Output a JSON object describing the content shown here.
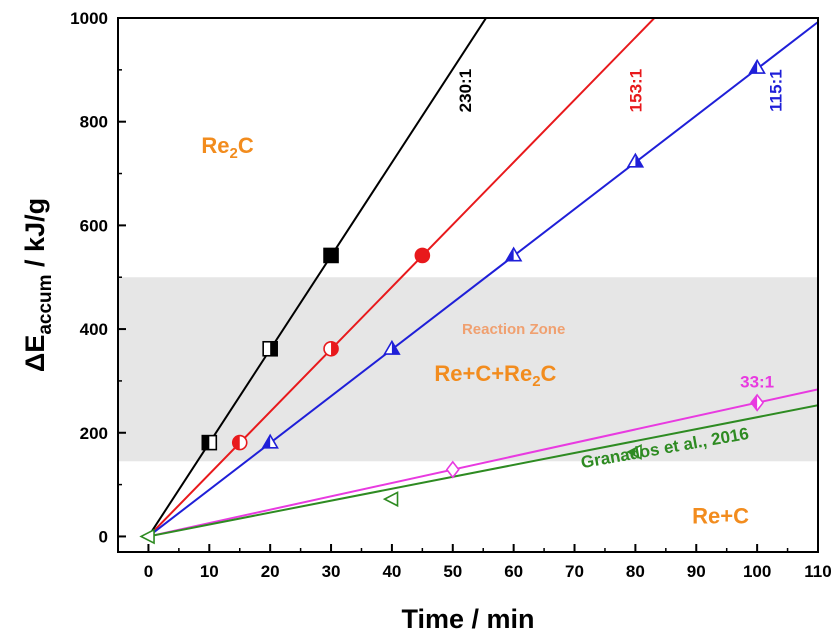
{
  "chart_data": {
    "type": "scatter",
    "xlabel": "Time / min",
    "ylabel": {
      "prefix": "ΔE",
      "sub": "accum",
      "suffix": " / kJ/g"
    },
    "xlim": [
      -5,
      110
    ],
    "ylim": [
      -30,
      1000
    ],
    "xticks": [
      0,
      10,
      20,
      30,
      40,
      50,
      60,
      70,
      80,
      90,
      100,
      110
    ],
    "yticks": [
      0,
      200,
      400,
      600,
      800,
      1000
    ],
    "grid": false,
    "legend": "none",
    "shaded_band": {
      "y": [
        145,
        500
      ],
      "label": "Reaction Zone",
      "color": "#E6E6E6"
    },
    "regions": [
      {
        "parts": [
          {
            "t": "Re"
          },
          {
            "t": "2",
            "sub": true
          },
          {
            "t": "C"
          }
        ],
        "x": 13,
        "y": 740
      },
      {
        "parts": [
          {
            "t": "Re+C+Re"
          },
          {
            "t": "2",
            "sub": true
          },
          {
            "t": "C"
          }
        ],
        "x": 57,
        "y": 300
      },
      {
        "parts": [
          {
            "t": "Re+C"
          }
        ],
        "x": 94,
        "y": 25
      }
    ],
    "series": [
      {
        "name": "230:1",
        "color": "#000000",
        "marker": "square",
        "slope": 18.03,
        "points": [
          {
            "x": 10,
            "y": 181,
            "fill": "half-left"
          },
          {
            "x": 20,
            "y": 362,
            "fill": "half-right"
          },
          {
            "x": 30,
            "y": 542,
            "fill": "full"
          }
        ],
        "label_pos": {
          "x": 53,
          "y": 860,
          "rotate": -90
        }
      },
      {
        "name": "153:1",
        "color": "#E8191C",
        "marker": "circle",
        "slope": 12.03,
        "points": [
          {
            "x": 15,
            "y": 181,
            "fill": "half-left"
          },
          {
            "x": 30,
            "y": 362,
            "fill": "half-right"
          },
          {
            "x": 45,
            "y": 542,
            "fill": "full"
          }
        ],
        "label_pos": {
          "x": 81,
          "y": 860,
          "rotate": -90
        }
      },
      {
        "name": "115:1",
        "color": "#1F1FD8",
        "marker": "triangle",
        "slope": 9.02,
        "points": [
          {
            "x": 20,
            "y": 181,
            "fill": "half-left"
          },
          {
            "x": 40,
            "y": 362,
            "fill": "half-right"
          },
          {
            "x": 60,
            "y": 542,
            "fill": "half-left"
          },
          {
            "x": 80,
            "y": 723,
            "fill": "half-right"
          },
          {
            "x": 100,
            "y": 904,
            "fill": "half-left"
          }
        ],
        "label_pos": {
          "x": 104,
          "y": 860,
          "rotate": -90
        }
      },
      {
        "name": "33:1",
        "color": "#E83AE0",
        "marker": "diamond",
        "slope": 2.58,
        "points": [
          {
            "x": 50,
            "y": 129,
            "fill": "none"
          },
          {
            "x": 100,
            "y": 258,
            "fill": "half-left"
          }
        ],
        "label_pos": {
          "x": 100,
          "y": 287,
          "rotate": 0
        }
      },
      {
        "name": "Granados et al., 2016",
        "color": "#2E8B22",
        "marker": "triangle-left",
        "slope": 2.3,
        "points": [
          {
            "x": 0,
            "y": 0,
            "fill": "none"
          },
          {
            "x": 40,
            "y": 72,
            "fill": "none"
          },
          {
            "x": 80,
            "y": 163,
            "fill": "half-left"
          }
        ],
        "label_pos": {
          "x": 85,
          "y": 160,
          "rotate": -10
        }
      }
    ]
  }
}
